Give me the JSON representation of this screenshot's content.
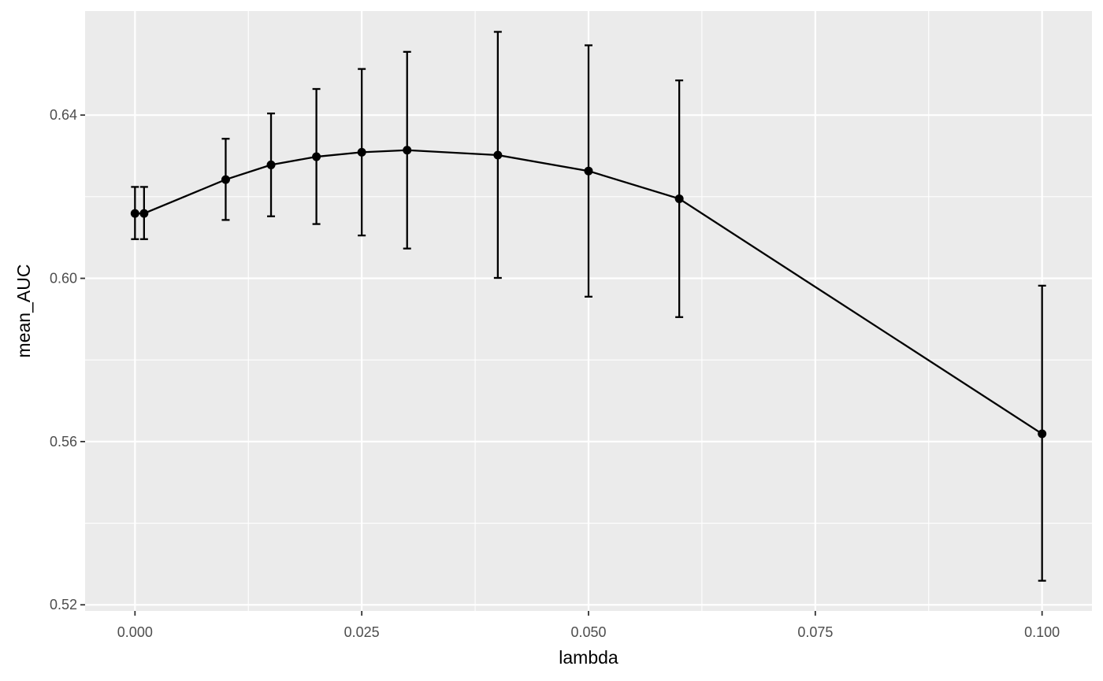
{
  "chart_data": {
    "type": "line",
    "title": "",
    "xlabel": "lambda",
    "ylabel": "mean_AUC",
    "xlim": [
      -0.0055,
      0.1055
    ],
    "ylim": [
      0.5185,
      0.6655
    ],
    "x_ticks": [
      0.0,
      0.025,
      0.05,
      0.075,
      0.1
    ],
    "x_tick_labels": [
      "0.000",
      "0.025",
      "0.050",
      "0.075",
      "0.100"
    ],
    "y_ticks": [
      0.52,
      0.56,
      0.6,
      0.64
    ],
    "y_tick_labels": [
      "0.52",
      "0.56",
      "0.60",
      "0.64"
    ],
    "grid": true,
    "colors": {
      "panel": "#ebebeb",
      "grid": "#ffffff",
      "line": "#000000"
    },
    "series": [
      {
        "x": [
          0.0,
          0.001,
          0.01,
          0.015,
          0.02,
          0.025,
          0.03,
          0.04,
          0.05,
          0.06,
          0.1
        ],
        "y": [
          0.6159,
          0.6159,
          0.6242,
          0.6278,
          0.6298,
          0.6309,
          0.6314,
          0.6302,
          0.6263,
          0.6195,
          0.5619
        ],
        "ymin": [
          0.6096,
          0.6096,
          0.6143,
          0.6152,
          0.6133,
          0.6105,
          0.6073,
          0.6001,
          0.5955,
          0.5905,
          0.5259
        ],
        "ymax": [
          0.6224,
          0.6224,
          0.6342,
          0.6404,
          0.6464,
          0.6513,
          0.6555,
          0.6604,
          0.6571,
          0.6485,
          0.5982
        ]
      }
    ]
  }
}
